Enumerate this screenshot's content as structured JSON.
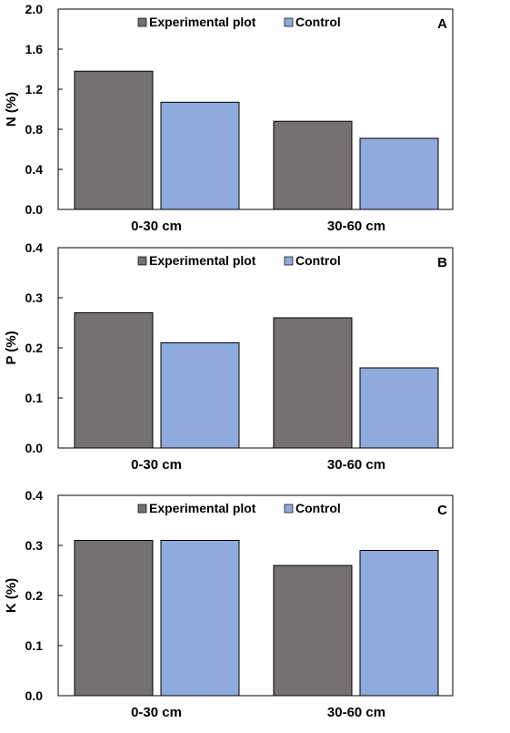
{
  "colors": {
    "experimental": "#767171",
    "control": "#8faadc",
    "axis": "#000000",
    "bar_stroke": "#000000"
  },
  "chart_data": [
    {
      "type": "bar",
      "panel_label": "A",
      "ylabel": "N (%)",
      "categories": [
        "0-30 cm",
        "30-60 cm"
      ],
      "ylim": [
        0,
        2.0
      ],
      "yticks": [
        "0.0",
        "0.4",
        "0.8",
        "1.2",
        "1.6",
        "2.0"
      ],
      "legend_position": "top-center",
      "grid": false,
      "series": [
        {
          "name": "Experimental plot",
          "values": [
            1.38,
            0.88
          ]
        },
        {
          "name": "Control",
          "values": [
            1.07,
            0.71
          ]
        }
      ]
    },
    {
      "type": "bar",
      "panel_label": "B",
      "ylabel": "P (%)",
      "categories": [
        "0-30 cm",
        "30-60 cm"
      ],
      "ylim": [
        0,
        0.4
      ],
      "yticks": [
        "0.0",
        "0.1",
        "0.2",
        "0.3",
        "0.4"
      ],
      "legend_position": "top-center",
      "grid": false,
      "series": [
        {
          "name": "Experimental plot",
          "values": [
            0.27,
            0.26
          ]
        },
        {
          "name": "Control",
          "values": [
            0.21,
            0.16
          ]
        }
      ]
    },
    {
      "type": "bar",
      "panel_label": "C",
      "ylabel": "K (%)",
      "categories": [
        "0-30 cm",
        "30-60 cm"
      ],
      "ylim": [
        0,
        0.4
      ],
      "yticks": [
        "0.0",
        "0.1",
        "0.2",
        "0.3",
        "0.4"
      ],
      "legend_position": "top-center",
      "grid": false,
      "series": [
        {
          "name": "Experimental plot",
          "values": [
            0.31,
            0.26
          ]
        },
        {
          "name": "Control",
          "values": [
            0.31,
            0.29
          ]
        }
      ]
    }
  ]
}
